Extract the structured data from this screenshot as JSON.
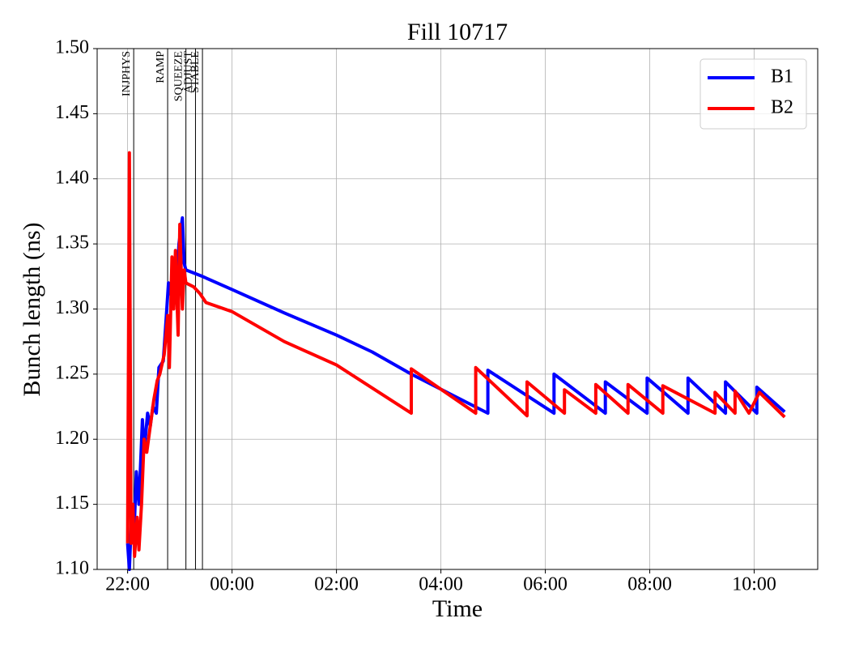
{
  "chart_data": {
    "type": "line",
    "title": "Fill 10717",
    "xlabel": "Time",
    "ylabel": "Bunch length (ns)",
    "xlim": [
      "21:25",
      "11:13"
    ],
    "xticks": [
      "22:00",
      "00:00",
      "02:00",
      "04:00",
      "06:00",
      "08:00",
      "10:00"
    ],
    "ylim": [
      1.1,
      1.5
    ],
    "yticks": [
      {
        "value": 1.1,
        "label": "1.10"
      },
      1.15,
      {
        "value": 1.2,
        "label": "1.20"
      },
      1.25,
      {
        "value": 1.3,
        "label": "1.30"
      },
      1.35,
      {
        "value": 1.4,
        "label": "1.40"
      },
      1.45,
      {
        "value": 1.5,
        "label": "1.50"
      }
    ],
    "grid": true,
    "legend": "upper right",
    "phases": [
      {
        "label": "INJPHYS",
        "time": "22:07"
      },
      {
        "label": "RAMP",
        "time": "22:46"
      },
      {
        "label": "SQUEEZE",
        "time": "23:07"
      },
      {
        "label": "ADJUST",
        "time": "23:18"
      },
      {
        "label": "STABLE",
        "time": "23:26"
      }
    ],
    "series": [
      {
        "name": "B1",
        "color": "#0000ff",
        "x": [
          "22:00",
          "22:02",
          "22:05",
          "22:07",
          "22:10",
          "22:13",
          "22:17",
          "22:19",
          "22:23",
          "22:26",
          "22:29",
          "22:33",
          "22:36",
          "22:41",
          "22:45",
          "22:47",
          "22:50",
          "22:53",
          "22:56",
          "22:59",
          "23:03",
          "23:05",
          "23:07",
          "23:26",
          "00:00",
          "01:00",
          "02:00",
          "02:41",
          "03:26",
          "04:54",
          "04:54",
          "06:10",
          "06:10",
          "07:09",
          "07:09",
          "07:57",
          "07:57",
          "08:44",
          "08:44",
          "09:27",
          "09:27",
          "10:03",
          "10:03",
          "10:35"
        ],
        "values": [
          1.12,
          1.1,
          1.15,
          1.12,
          1.175,
          1.15,
          1.215,
          1.19,
          1.22,
          1.21,
          1.225,
          1.22,
          1.255,
          1.26,
          1.3,
          1.32,
          1.31,
          1.33,
          1.31,
          1.35,
          1.37,
          1.335,
          1.33,
          1.325,
          1.315,
          1.297,
          1.28,
          1.267,
          1.25,
          1.22,
          1.253,
          1.22,
          1.25,
          1.22,
          1.244,
          1.22,
          1.247,
          1.22,
          1.247,
          1.22,
          1.244,
          1.22,
          1.24,
          1.221
        ]
      },
      {
        "name": "B2",
        "color": "#ff0000",
        "x": [
          "22:00",
          "22:02",
          "22:04",
          "22:06",
          "22:08",
          "22:11",
          "22:13",
          "22:16",
          "22:19",
          "22:22",
          "22:26",
          "22:30",
          "22:34",
          "22:37",
          "22:42",
          "22:46",
          "22:48",
          "22:51",
          "22:53",
          "22:55",
          "22:58",
          "23:00",
          "23:03",
          "23:05",
          "23:07",
          "23:16",
          "23:23",
          "23:30",
          "00:00",
          "01:00",
          "02:00",
          "03:26",
          "03:26",
          "04:40",
          "04:40",
          "05:39",
          "05:39",
          "06:22",
          "06:22",
          "06:58",
          "06:58",
          "07:35",
          "07:35",
          "08:15",
          "08:15",
          "09:15",
          "09:15",
          "09:38",
          "09:38",
          "09:54",
          "10:06",
          "10:35"
        ],
        "values": [
          1.12,
          1.42,
          1.12,
          1.15,
          1.11,
          1.14,
          1.115,
          1.15,
          1.2,
          1.19,
          1.21,
          1.23,
          1.245,
          1.25,
          1.265,
          1.295,
          1.255,
          1.34,
          1.3,
          1.345,
          1.28,
          1.365,
          1.3,
          1.33,
          1.32,
          1.317,
          1.312,
          1.305,
          1.298,
          1.275,
          1.257,
          1.22,
          1.254,
          1.22,
          1.255,
          1.218,
          1.244,
          1.22,
          1.238,
          1.22,
          1.242,
          1.22,
          1.242,
          1.22,
          1.241,
          1.22,
          1.236,
          1.22,
          1.237,
          1.22,
          1.236,
          1.217
        ]
      }
    ]
  }
}
